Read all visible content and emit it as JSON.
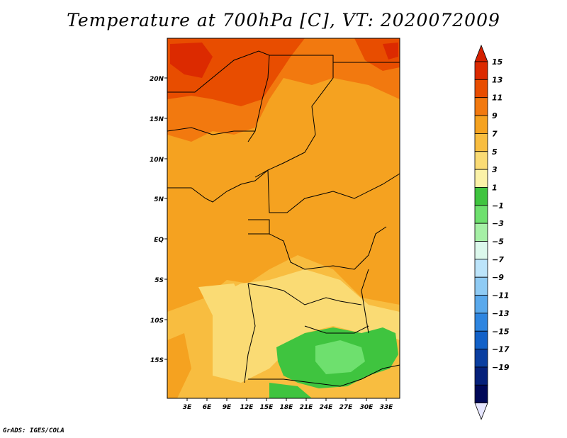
{
  "title": "Temperature at 700hPa [C], VT: 2020072009",
  "credit": "GrADS: IGES/COLA",
  "map": {
    "lat_labels": [
      "20N",
      "15N",
      "10N",
      "5N",
      "EQ",
      "5S",
      "10S",
      "15S"
    ],
    "lon_labels": [
      "3E",
      "6E",
      "9E",
      "12E",
      "15E",
      "18E",
      "21E",
      "24E",
      "27E",
      "30E",
      "33E"
    ]
  },
  "colorbar": {
    "labels": [
      "15",
      "13",
      "11",
      "9",
      "7",
      "5",
      "3",
      "1",
      "−1",
      "−3",
      "−5",
      "−7",
      "−9",
      "−11",
      "−13",
      "−15",
      "−17",
      "−19"
    ],
    "colors": [
      "#dc2a00",
      "#e84d00",
      "#f2790f",
      "#f5a220",
      "#f8bd40",
      "#fadb74",
      "#fbf2a8",
      "#3fc43f",
      "#6ee06e",
      "#a6f0a6",
      "#dcf8ec",
      "#bce4fa",
      "#8fcbf4",
      "#5aa9ec",
      "#2e85e0",
      "#1261c8",
      "#0a3ea0",
      "#05207a",
      "#000858"
    ],
    "top_arrow_color": "#d42000",
    "bottom_arrow_color": "#e6e6ff"
  }
}
